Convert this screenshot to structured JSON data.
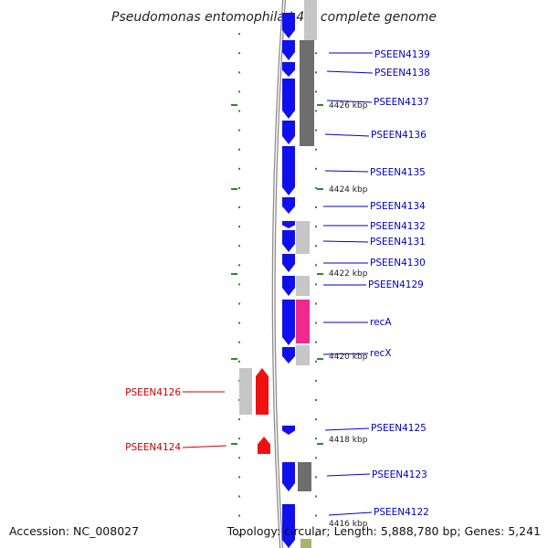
{
  "title": "Pseudomonas entomophila L48, complete genome",
  "footer": {
    "accession": "Accession: NC_008027",
    "summary": "Topology: circular; Length: 5,888,780 bp; Genes: 5,241"
  },
  "colors": {
    "plus_strand": "#1010ee",
    "minus_strand": "#ee1111",
    "plus_label": "#0000cc",
    "minus_label": "#cc0000",
    "gray_light": "#c6c6c6",
    "gray_dark": "#6e6e6e",
    "reca": "#ee2a8e",
    "olive": "#a8b46a",
    "tick": "#2a8a2a",
    "backbone": "#8c8c8c"
  },
  "kbp_labels": [
    "4426 kbp",
    "4424 kbp",
    "4422 kbp",
    "4420 kbp",
    "4418 kbp",
    "4416 kbp"
  ],
  "genes": [
    {
      "name": "PSEEN4139",
      "strand": "+"
    },
    {
      "name": "PSEEN4138",
      "strand": "+"
    },
    {
      "name": "PSEEN4137",
      "strand": "+"
    },
    {
      "name": "PSEEN4136",
      "strand": "+"
    },
    {
      "name": "PSEEN4135",
      "strand": "+"
    },
    {
      "name": "PSEEN4134",
      "strand": "+"
    },
    {
      "name": "PSEEN4132",
      "strand": "+"
    },
    {
      "name": "PSEEN4131",
      "strand": "+"
    },
    {
      "name": "PSEEN4130",
      "strand": "+"
    },
    {
      "name": "PSEEN4129",
      "strand": "+"
    },
    {
      "name": "recA",
      "strand": "+"
    },
    {
      "name": "recX",
      "strand": "+"
    },
    {
      "name": "PSEEN4126",
      "strand": "-"
    },
    {
      "name": "PSEEN4125",
      "strand": "+"
    },
    {
      "name": "PSEEN4124",
      "strand": "-"
    },
    {
      "name": "PSEEN4123",
      "strand": "+"
    },
    {
      "name": "PSEEN4122",
      "strand": "+"
    }
  ]
}
